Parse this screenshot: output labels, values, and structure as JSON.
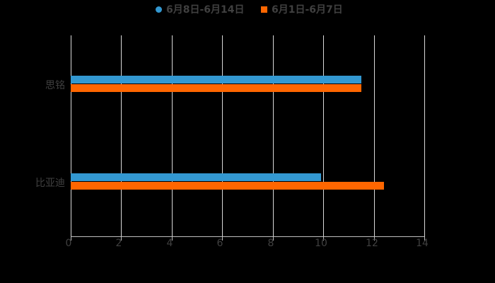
{
  "chart_data": {
    "type": "bar",
    "orientation": "horizontal",
    "title": "",
    "xlabel": "",
    "ylabel": "",
    "categories": [
      "思铭",
      "比亚迪"
    ],
    "series": [
      {
        "name": "6月8日-6月14日",
        "color": "#3398d1",
        "values": [
          11.5,
          9.9
        ]
      },
      {
        "name": "6月1日-6月7日",
        "color": "#ff6600",
        "values": [
          11.5,
          12.4
        ]
      }
    ],
    "xlim": [
      0,
      14
    ],
    "xticks": [
      "0",
      "2",
      "4",
      "6",
      "8",
      "10",
      "12",
      "14"
    ],
    "grid": true,
    "legend_position": "top"
  },
  "legend": {
    "items": [
      {
        "label": "6月8日-6月14日",
        "color": "#3398d1",
        "marker": "circle"
      },
      {
        "label": "6月1日-6月7日",
        "color": "#ff6600",
        "marker": "square"
      }
    ]
  }
}
